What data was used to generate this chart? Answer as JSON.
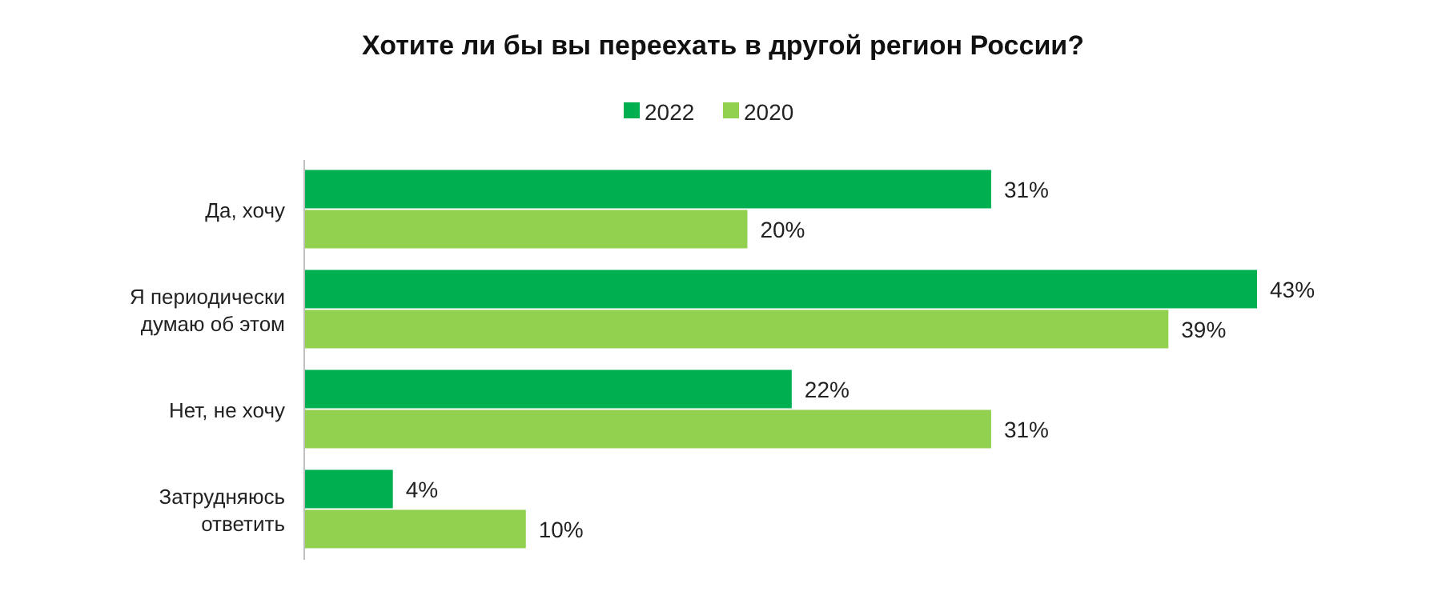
{
  "chart_data": {
    "type": "bar",
    "orientation": "horizontal",
    "title": "Хотите ли бы вы переехать в другой регион России?",
    "categories": [
      "Да, хочу",
      "Я периодически думаю об этом",
      "Нет, не хочу",
      "Затрудняюсь ответить"
    ],
    "series": [
      {
        "name": "2022",
        "color": "#00b050",
        "values": [
          31,
          43,
          22,
          4
        ],
        "value_labels": [
          "31%",
          "43%",
          "22%",
          "4%"
        ]
      },
      {
        "name": "2020",
        "color": "#92d050",
        "values": [
          20,
          39,
          31,
          10
        ],
        "value_labels": [
          "20%",
          "39%",
          "31%",
          "10%"
        ]
      }
    ],
    "legend": "top"
  }
}
